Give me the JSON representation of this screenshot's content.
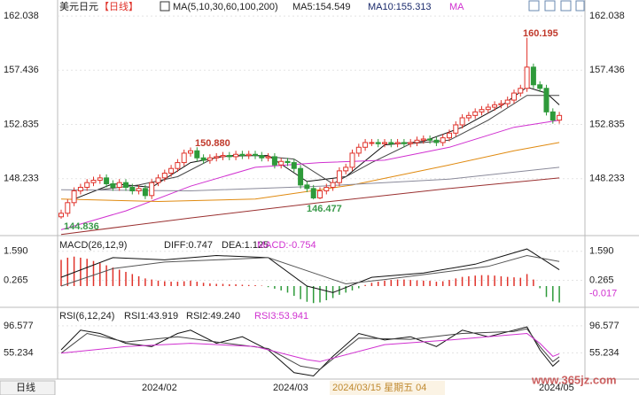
{
  "header": {
    "symbol": "美元日元",
    "period": "【日线】"
  },
  "chart_data": [
    {
      "type": "candlestick",
      "legend": [
        {
          "text": "MA(5,10,30,60,100,200)",
          "color": "#222222"
        },
        {
          "text": "MA5:154.549",
          "color": "#222222"
        },
        {
          "text": "MA10:155.313",
          "color": "#1a2a6c"
        },
        {
          "text": "MA",
          "color": "#d030d0"
        }
      ],
      "up_color": "#e0322a",
      "down_color": "#2e9a3a",
      "open": [
        145.0,
        145.3,
        146.2,
        147.2,
        147.5,
        147.9,
        148.1,
        148.3,
        147.8,
        147.5,
        147.9,
        147.5,
        147.2,
        147.4,
        146.8,
        147.9,
        148.3,
        148.7,
        149.1,
        149.6,
        150.4,
        150.6,
        150.0,
        149.8,
        150.0,
        150.1,
        150.2,
        150.1,
        150.3,
        150.2,
        150.3,
        150.2,
        150.0,
        150.1,
        149.4,
        149.7,
        149.6,
        149.1,
        147.7,
        147.4,
        146.6,
        147.2,
        147.5,
        147.9,
        148.9,
        149.2,
        150.4,
        150.9,
        151.3,
        151.3,
        151.2,
        151.3,
        151.2,
        151.3,
        151.2,
        151.3,
        151.5,
        151.6,
        151.5,
        151.3,
        151.7,
        152.1,
        152.8,
        153.4,
        153.6,
        153.9,
        154.1,
        154.3,
        154.5,
        154.6,
        154.9,
        155.5,
        155.9,
        157.7,
        156.2,
        155.9,
        153.9,
        153.2
      ],
      "high": [
        145.6,
        146.5,
        147.5,
        147.8,
        148.2,
        148.4,
        148.6,
        148.6,
        148.1,
        148.2,
        148.2,
        147.8,
        147.7,
        147.7,
        148.2,
        148.6,
        149.0,
        149.4,
        149.9,
        150.7,
        150.88,
        150.9,
        150.3,
        150.3,
        150.4,
        150.5,
        150.5,
        150.6,
        150.6,
        150.6,
        150.6,
        150.5,
        150.4,
        150.4,
        150.0,
        150.0,
        149.9,
        149.4,
        148.0,
        147.7,
        147.5,
        147.8,
        148.2,
        149.2,
        149.5,
        150.7,
        151.2,
        151.6,
        151.6,
        151.6,
        151.6,
        151.6,
        151.6,
        151.6,
        151.6,
        151.8,
        151.9,
        151.9,
        151.8,
        152.0,
        152.4,
        153.1,
        153.7,
        153.9,
        154.2,
        154.4,
        154.6,
        154.8,
        154.9,
        155.2,
        155.8,
        156.2,
        160.195,
        158.0,
        156.5,
        156.2,
        154.2,
        153.9
      ],
      "low": [
        144.836,
        145.0,
        145.9,
        146.9,
        147.2,
        147.6,
        147.8,
        147.5,
        147.2,
        147.2,
        147.2,
        146.9,
        146.9,
        146.5,
        146.5,
        147.6,
        148.0,
        148.4,
        148.8,
        149.3,
        150.1,
        149.7,
        149.5,
        149.5,
        149.7,
        149.8,
        149.8,
        149.8,
        149.9,
        149.9,
        149.9,
        149.7,
        149.7,
        149.1,
        149.1,
        149.3,
        148.8,
        147.4,
        147.1,
        146.477,
        146.5,
        146.9,
        147.2,
        147.6,
        148.6,
        148.9,
        150.1,
        150.6,
        151.0,
        150.9,
        150.9,
        150.9,
        150.9,
        150.9,
        150.9,
        151.0,
        151.2,
        151.2,
        151.0,
        151.0,
        151.4,
        151.8,
        152.5,
        153.1,
        153.3,
        153.6,
        153.8,
        154.0,
        154.2,
        154.3,
        154.6,
        155.2,
        155.6,
        155.9,
        155.6,
        153.6,
        152.9,
        152.9
      ],
      "close": [
        145.3,
        146.2,
        147.2,
        147.5,
        147.9,
        148.1,
        148.3,
        147.8,
        147.5,
        147.9,
        147.5,
        147.2,
        147.4,
        146.8,
        147.9,
        148.3,
        148.7,
        149.1,
        149.6,
        150.4,
        150.6,
        150.0,
        149.8,
        150.0,
        150.1,
        150.2,
        150.1,
        150.3,
        150.2,
        150.3,
        150.2,
        150.0,
        150.1,
        149.4,
        149.7,
        149.6,
        149.1,
        147.7,
        147.4,
        146.6,
        147.2,
        147.5,
        147.9,
        148.9,
        149.2,
        150.4,
        150.9,
        151.3,
        151.3,
        151.2,
        151.3,
        151.2,
        151.3,
        151.2,
        151.3,
        151.5,
        151.6,
        151.5,
        151.3,
        151.7,
        152.1,
        152.8,
        153.4,
        153.6,
        153.9,
        154.1,
        154.3,
        154.5,
        154.6,
        154.9,
        155.5,
        155.9,
        157.7,
        156.2,
        155.9,
        153.9,
        153.2,
        153.6
      ],
      "annotations": [
        "160.195",
        "150.880",
        "146.477",
        "144.836"
      ],
      "series": [
        {
          "color": "#111111",
          "x": [
            2,
            8,
            14,
            20,
            26,
            32,
            38,
            44,
            50,
            56,
            62,
            68,
            72,
            75,
            77
          ],
          "values": [
            146.5,
            147.8,
            147.5,
            149.6,
            150.2,
            150.2,
            148.0,
            148.4,
            151.1,
            151.4,
            152.6,
            154.4,
            156.0,
            155.5,
            154.5
          ]
        },
        {
          "color": "#444444",
          "x": [
            6,
            12,
            18,
            24,
            30,
            36,
            42,
            48,
            54,
            60,
            66,
            72,
            77
          ],
          "values": [
            147.3,
            147.7,
            148.4,
            150.1,
            150.2,
            149.9,
            147.8,
            149.6,
            151.2,
            151.5,
            153.2,
            155.3,
            155.3
          ]
        },
        {
          "color": "#d030d0",
          "x": [
            0,
            10,
            20,
            30,
            40,
            50,
            60,
            70,
            77
          ],
          "values": [
            143.9,
            145.5,
            147.6,
            149.2,
            149.6,
            149.8,
            150.9,
            152.6,
            153.2
          ]
        },
        {
          "color": "#e08a10",
          "x": [
            0,
            15,
            30,
            45,
            60,
            70,
            77
          ],
          "values": [
            146.5,
            146.3,
            146.5,
            147.7,
            149.4,
            150.6,
            151.3
          ]
        },
        {
          "color": "#8a8a9a",
          "x": [
            0,
            20,
            40,
            60,
            77
          ],
          "values": [
            147.3,
            147.2,
            147.6,
            148.2,
            149.2
          ]
        },
        {
          "color": "#9a3030",
          "x": [
            0,
            20,
            40,
            60,
            77
          ],
          "values": [
            143.5,
            144.9,
            146.2,
            147.4,
            148.3
          ]
        }
      ],
      "ylim": [
        143.405,
        163.396
      ],
      "yticks": [
        162.038,
        157.436,
        152.835,
        148.233
      ]
    },
    {
      "type": "macd",
      "legend": [
        {
          "text": "MACD(26,12,9)",
          "color": "#222222"
        },
        {
          "text": "DIFF:0.747",
          "color": "#222222"
        },
        {
          "text": "DEA:1.125",
          "color": "#222222"
        },
        {
          "text": "MACD:-0.754",
          "color": "#d030d0"
        }
      ],
      "up_color": "#e0322a",
      "down_color": "#2e9a3a",
      "values": [
        1.2,
        1.3,
        1.35,
        1.3,
        1.25,
        1.15,
        1.05,
        0.95,
        0.85,
        0.75,
        0.65,
        0.55,
        0.45,
        0.35,
        0.3,
        0.25,
        0.22,
        0.2,
        0.2,
        0.22,
        0.25,
        0.2,
        0.15,
        0.12,
        0.1,
        0.1,
        0.08,
        0.08,
        0.06,
        0.05,
        0.04,
        0.02,
        -0.05,
        -0.12,
        -0.2,
        -0.3,
        -0.45,
        -0.6,
        -0.72,
        -0.78,
        -0.75,
        -0.65,
        -0.55,
        -0.4,
        -0.3,
        -0.2,
        -0.1,
        0.05,
        0.15,
        0.2,
        0.25,
        0.28,
        0.3,
        0.3,
        0.28,
        0.26,
        0.25,
        0.24,
        0.2,
        0.22,
        0.28,
        0.35,
        0.42,
        0.45,
        0.48,
        0.5,
        0.5,
        0.48,
        0.45,
        0.42,
        0.4,
        0.38,
        0.55,
        0.3,
        -0.1,
        -0.5,
        -0.7,
        -0.754
      ],
      "series": [
        {
          "color": "#111111",
          "x": [
            0,
            8,
            16,
            24,
            32,
            38,
            42,
            48,
            56,
            64,
            72,
            77
          ],
          "values": [
            0.4,
            1.3,
            1.2,
            1.4,
            1.3,
            0.0,
            -0.3,
            0.4,
            0.6,
            1.0,
            1.7,
            0.747
          ]
        },
        {
          "color": "#555555",
          "x": [
            0,
            8,
            16,
            24,
            32,
            38,
            44,
            50,
            58,
            66,
            72,
            77
          ],
          "values": [
            0.0,
            0.8,
            1.1,
            1.2,
            1.3,
            0.7,
            0.1,
            0.3,
            0.6,
            0.9,
            1.4,
            1.125
          ]
        }
      ],
      "marker": {
        "value": -0.017,
        "label": "-0.017",
        "color": "#d030d0"
      },
      "ylim": [
        -0.974,
        2.231
      ],
      "yticks": [
        {
          "value": 1.59,
          "label": "1.590"
        },
        0.265
      ]
    },
    {
      "type": "rsi",
      "legend": [
        {
          "text": "RSI(6,12,24)",
          "color": "#222222"
        },
        {
          "text": "RSI1:43.919",
          "color": "#222222"
        },
        {
          "text": "RSI2:49.240",
          "color": "#222222"
        },
        {
          "text": "RSI3:53.941",
          "color": "#d030d0"
        }
      ],
      "series": [
        {
          "color": "#111111",
          "x": [
            0,
            3,
            6,
            10,
            14,
            18,
            20,
            24,
            28,
            32,
            36,
            39,
            42,
            46,
            50,
            54,
            58,
            62,
            66,
            70,
            72,
            74,
            76,
            77
          ],
          "values": [
            60,
            90,
            85,
            70,
            65,
            85,
            90,
            70,
            80,
            60,
            25,
            20,
            50,
            85,
            75,
            80,
            65,
            90,
            80,
            90,
            95,
            60,
            35,
            43.919
          ]
        },
        {
          "color": "#444444",
          "x": [
            0,
            4,
            10,
            18,
            24,
            32,
            37,
            40,
            46,
            54,
            62,
            70,
            72,
            74,
            76,
            77
          ],
          "values": [
            55,
            85,
            72,
            80,
            72,
            62,
            35,
            30,
            78,
            76,
            85,
            88,
            92,
            65,
            42,
            49.24
          ]
        },
        {
          "color": "#d030d0",
          "x": [
            0,
            10,
            20,
            30,
            38,
            40,
            50,
            60,
            72,
            74,
            76,
            77
          ],
          "values": [
            55,
            65,
            70,
            65,
            45,
            42,
            68,
            75,
            85,
            70,
            50,
            53.941
          ]
        }
      ],
      "ylim": [
        15.3,
        122.2
      ],
      "yticks": [
        96.577,
        55.234
      ]
    }
  ],
  "x_axis": {
    "labels": [
      "2024/02",
      "2024/03",
      "2024/05"
    ],
    "crosshair": "2024/03/15 星期五 04"
  },
  "footer": {
    "period_button": "日线",
    "watermark": "www.365jz.com"
  }
}
